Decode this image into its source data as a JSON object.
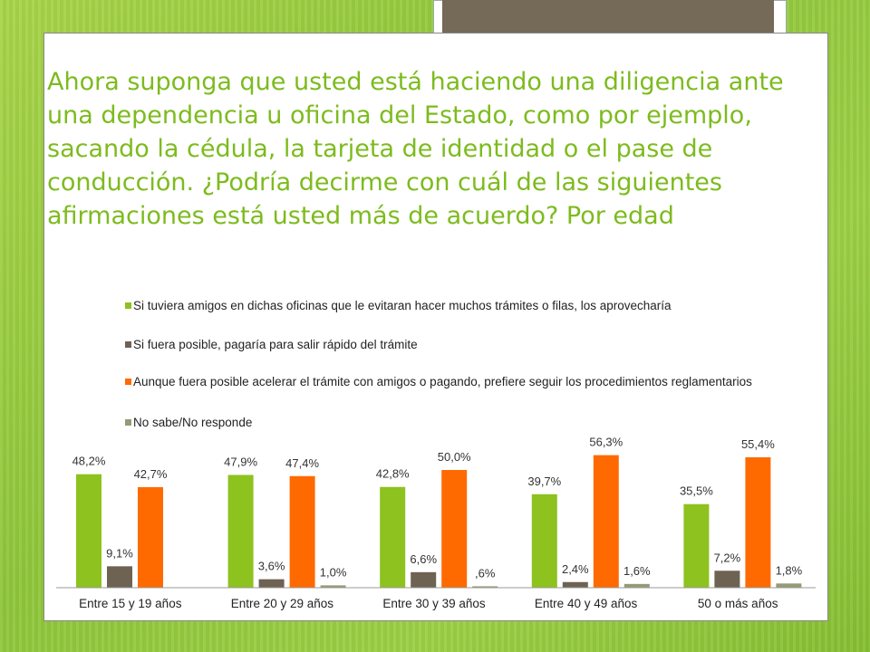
{
  "slide": {
    "title": "Ahora suponga que usted está haciendo una diligencia ante una dependencia u oficina del Estado, como por ejemplo, sacando la cédula, la tarjeta de identidad o el pase de conducción. ¿Podría decirme con cuál de las siguientes afirmaciones está usted más de acuerdo? Por edad"
  },
  "colors": {
    "background": "#8fc63b",
    "title": "#7dbb1e",
    "tab": "#756957"
  },
  "chart_data": {
    "type": "bar",
    "legend_position": "top",
    "grid": false,
    "ylim": [
      0,
      60
    ],
    "categories": [
      "Entre 15 y 19 años",
      "Entre 20 y 29 años",
      "Entre 30 y 39 años",
      "Entre 40 y 49 años",
      "50 o más años"
    ],
    "series": [
      {
        "name": "Si tuviera amigos en dichas oficinas que le evitaran hacer muchos trámites o filas, los aprovecharía",
        "color": "#8dc21f",
        "values": [
          48.2,
          47.9,
          42.8,
          39.7,
          35.5
        ],
        "labels": [
          "48,2%",
          "47,9%",
          "42,8%",
          "39,7%",
          "35,5%"
        ]
      },
      {
        "name": "Si fuera posible, pagaría para salir rápido del trámite",
        "color": "#6e6253",
        "values": [
          9.1,
          3.6,
          6.6,
          2.4,
          7.2
        ],
        "labels": [
          "9,1%",
          "3,6%",
          "6,6%",
          "2,4%",
          "7,2%"
        ]
      },
      {
        "name": "Aunque fuera posible acelerar el trámite con amigos o pagando, prefiere seguir los procedimientos reglamentarios",
        "color": "#ff6a00",
        "values": [
          42.7,
          47.4,
          50.0,
          56.3,
          55.4
        ],
        "labels": [
          "42,7%",
          "47,4%",
          "50,0%",
          "56,3%",
          "55,4%"
        ]
      },
      {
        "name": "No sabe/No responde",
        "color": "#949b76",
        "values": [
          null,
          1.0,
          0.6,
          1.6,
          1.8
        ],
        "labels": [
          "",
          "1,0%",
          ",6%",
          "1,6%",
          "1,8%"
        ]
      }
    ]
  }
}
